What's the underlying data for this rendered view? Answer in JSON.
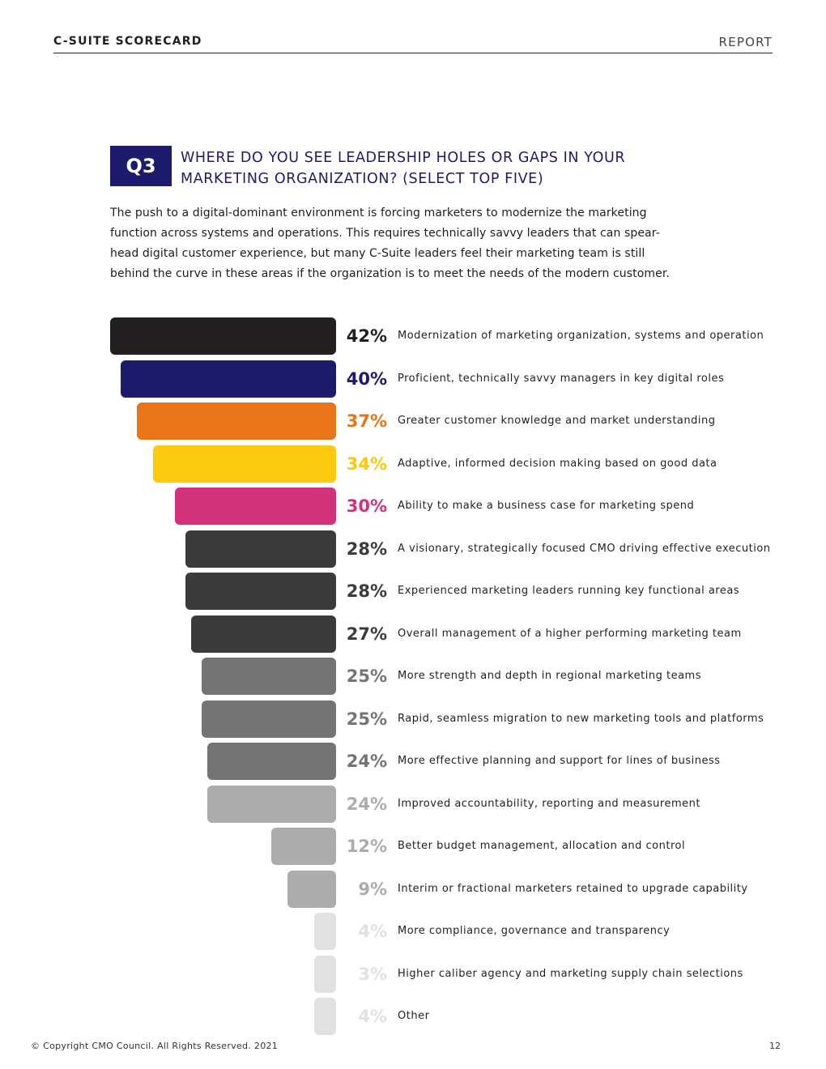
{
  "header": {
    "left": "C-SUITE SCORECARD",
    "right": "REPORT"
  },
  "question": {
    "badge": "Q3",
    "title_lines": [
      "WHERE DO YOU SEE LEADERSHIP HOLES OR GAPS IN YOUR",
      "MARKETING ORGANIZATION? (SELECT TOP FIVE)"
    ],
    "intro_lines": [
      "The push to a digital-dominant environment is forcing marketers to modernize the marketing",
      "function across systems and operations. This requires technically savvy leaders that can spear-",
      "head digital customer experience, but many C-Suite leaders feel their marketing team is still",
      "behind the curve in these areas if the organization is to meet the needs of the modern customer."
    ]
  },
  "chart_data": {
    "type": "bar",
    "orientation": "horizontal",
    "unit": "%",
    "xlim": [
      0,
      42
    ],
    "categories": [
      "Modernization of marketing organization, systems and operation",
      "Proficient, technically savvy managers in key digital roles",
      "Greater customer knowledge and market understanding",
      "Adaptive, informed decision making based on good data",
      "Ability to make a business case for marketing spend",
      "A visionary, strategically focused CMO driving effective execution",
      "Experienced marketing leaders running key functional areas",
      "Overall management of a higher performing marketing team",
      "More strength and depth in regional marketing teams",
      "Rapid, seamless migration to new marketing tools and platforms",
      "More effective planning and support for lines of business",
      "Improved accountability, reporting and measurement",
      "Better budget management, allocation and control",
      "Interim or fractional marketers retained to upgrade capability",
      "More compliance, governance and transparency",
      "Higher caliber agency and marketing supply chain selections",
      "Other"
    ],
    "values": [
      42,
      40,
      37,
      34,
      30,
      28,
      28,
      27,
      25,
      25,
      24,
      24,
      12,
      9,
      4,
      3,
      4
    ],
    "value_labels": [
      "42%",
      "40%",
      "37%",
      "34%",
      "30%",
      "28%",
      "28%",
      "27%",
      "25%",
      "25%",
      "24%",
      "24%",
      "12%",
      "9%",
      "4%",
      "3%",
      "4%"
    ],
    "bar_colors": [
      "#231f20",
      "#1c1b6e",
      "#e8751a",
      "#fdc90f",
      "#d3317a",
      "#3d3a3c",
      "#3d3a3c",
      "#3d3a3c",
      "#767374",
      "#767374",
      "#767374",
      "#adabac",
      "#adabac",
      "#adabac",
      "#e2e1e2",
      "#e2e1e2",
      "#e2e1e2"
    ],
    "label_colors": [
      "#231f20",
      "#1c1b6e",
      "#e8751a",
      "#fdc90f",
      "#d3317a",
      "#3d3a3c",
      "#3d3a3c",
      "#3d3a3c",
      "#767374",
      "#767374",
      "#767374",
      "#adabac",
      "#adabac",
      "#adabac",
      "#e2e1e2",
      "#e2e1e2",
      "#e2e1e2"
    ]
  },
  "footer": {
    "copyright": "© Copyright CMO Council. All Rights Reserved. 2021",
    "page_number": "12"
  }
}
